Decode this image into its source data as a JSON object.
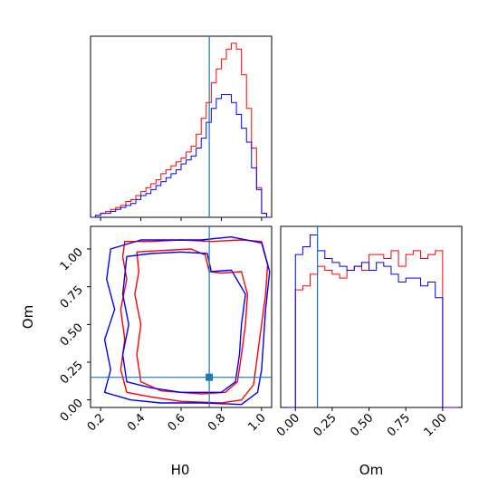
{
  "chart_data": {
    "type": "corner",
    "parameters": [
      "H0",
      "Om"
    ],
    "truth": {
      "H0": 0.74,
      "Om": 0.15
    },
    "colors": {
      "series_a": "#ff0000",
      "series_b": "#0000ff",
      "truth": "#1f77b4"
    },
    "hist_H0": {
      "bins": [
        0.15,
        0.175,
        0.2,
        0.225,
        0.25,
        0.275,
        0.3,
        0.325,
        0.35,
        0.375,
        0.4,
        0.425,
        0.45,
        0.475,
        0.5,
        0.525,
        0.55,
        0.575,
        0.6,
        0.625,
        0.65,
        0.675,
        0.7,
        0.725,
        0.75,
        0.775,
        0.8,
        0.825,
        0.85,
        0.875,
        0.9,
        0.925,
        0.95,
        0.975,
        1.0,
        1.025,
        1.05
      ],
      "series": [
        {
          "color": "red",
          "values": [
            0,
            1,
            2,
            3,
            4,
            5,
            6,
            8,
            9,
            11,
            13,
            15,
            17,
            19,
            22,
            24,
            26,
            28,
            30,
            33,
            36,
            42,
            50,
            58,
            68,
            75,
            80,
            85,
            88,
            85,
            72,
            55,
            35,
            15,
            2,
            0
          ]
        },
        {
          "color": "blue",
          "values": [
            0,
            1,
            2,
            2,
            3,
            4,
            5,
            6,
            7,
            9,
            11,
            12,
            14,
            16,
            18,
            20,
            22,
            24,
            27,
            29,
            31,
            35,
            40,
            48,
            55,
            60,
            62,
            62,
            58,
            52,
            45,
            38,
            25,
            14,
            2,
            0
          ]
        }
      ],
      "xlim": [
        0.15,
        1.05
      ],
      "ticks": [
        "0.2",
        "0.4",
        "0.6",
        "0.8",
        "1.0"
      ]
    },
    "hist_Om": {
      "bins": [
        -0.05,
        0.0,
        0.05,
        0.1,
        0.15,
        0.2,
        0.25,
        0.3,
        0.35,
        0.4,
        0.45,
        0.5,
        0.55,
        0.6,
        0.65,
        0.7,
        0.75,
        0.8,
        0.85,
        0.9,
        0.95,
        1.0,
        1.05,
        1.1
      ],
      "series": [
        {
          "color": "red",
          "values": [
            0,
            60,
            62,
            68,
            72,
            70,
            68,
            66,
            70,
            72,
            70,
            78,
            78,
            76,
            80,
            72,
            78,
            80,
            76,
            78,
            80,
            0,
            0
          ]
        },
        {
          "color": "blue",
          "values": [
            0,
            78,
            82,
            88,
            80,
            76,
            74,
            72,
            70,
            72,
            74,
            70,
            74,
            72,
            68,
            64,
            66,
            66,
            62,
            64,
            56,
            0,
            0
          ]
        }
      ],
      "xlim": [
        -0.1,
        1.13
      ],
      "ticks": [
        "0.00",
        "0.25",
        "0.50",
        "0.75",
        "1.00"
      ]
    },
    "contour": {
      "xlim": [
        0.15,
        1.05
      ],
      "ylim": [
        -0.05,
        1.15
      ],
      "xticks": [
        "0.2",
        "0.4",
        "0.6",
        "0.8",
        "1.0"
      ],
      "yticks": [
        "0.00",
        "0.25",
        "0.50",
        "0.75",
        "1.00"
      ],
      "series": [
        {
          "color": "red",
          "levels": [
            [
              [
                0.32,
                1.05
              ],
              [
                0.45,
                1.05
              ],
              [
                0.6,
                1.06
              ],
              [
                0.75,
                1.05
              ],
              [
                0.9,
                1.06
              ],
              [
                1.0,
                1.05
              ],
              [
                1.03,
                0.9
              ],
              [
                1.02,
                0.7
              ],
              [
                1.0,
                0.5
              ],
              [
                0.98,
                0.3
              ],
              [
                0.96,
                0.1
              ],
              [
                0.9,
                0.0
              ],
              [
                0.8,
                -0.02
              ],
              [
                0.6,
                -0.01
              ],
              [
                0.45,
                0.02
              ],
              [
                0.33,
                0.05
              ],
              [
                0.3,
                0.2
              ],
              [
                0.32,
                0.4
              ],
              [
                0.3,
                0.6
              ],
              [
                0.33,
                0.8
              ],
              [
                0.31,
                0.95
              ],
              [
                0.32,
                1.05
              ]
            ],
            [
              [
                0.38,
                0.98
              ],
              [
                0.5,
                0.99
              ],
              [
                0.65,
                1.0
              ],
              [
                0.72,
                0.96
              ],
              [
                0.74,
                0.85
              ],
              [
                0.8,
                0.84
              ],
              [
                0.9,
                0.85
              ],
              [
                0.93,
                0.7
              ],
              [
                0.92,
                0.5
              ],
              [
                0.9,
                0.3
              ],
              [
                0.88,
                0.12
              ],
              [
                0.82,
                0.05
              ],
              [
                0.7,
                0.04
              ],
              [
                0.5,
                0.06
              ],
              [
                0.4,
                0.12
              ],
              [
                0.38,
                0.3
              ],
              [
                0.4,
                0.5
              ],
              [
                0.37,
                0.7
              ],
              [
                0.39,
                0.85
              ],
              [
                0.38,
                0.98
              ]
            ]
          ]
        },
        {
          "color": "blue",
          "levels": [
            [
              [
                0.25,
                1.0
              ],
              [
                0.4,
                1.06
              ],
              [
                0.55,
                1.06
              ],
              [
                0.7,
                1.06
              ],
              [
                0.85,
                1.08
              ],
              [
                1.0,
                1.04
              ],
              [
                1.04,
                0.85
              ],
              [
                1.02,
                0.6
              ],
              [
                1.01,
                0.4
              ],
              [
                1.0,
                0.2
              ],
              [
                0.98,
                0.05
              ],
              [
                0.9,
                -0.03
              ],
              [
                0.7,
                -0.02
              ],
              [
                0.5,
                -0.02
              ],
              [
                0.35,
                0.0
              ],
              [
                0.22,
                0.05
              ],
              [
                0.25,
                0.2
              ],
              [
                0.22,
                0.4
              ],
              [
                0.27,
                0.6
              ],
              [
                0.23,
                0.8
              ],
              [
                0.25,
                1.0
              ]
            ],
            [
              [
                0.33,
                0.95
              ],
              [
                0.45,
                0.97
              ],
              [
                0.6,
                0.98
              ],
              [
                0.73,
                0.97
              ],
              [
                0.75,
                0.85
              ],
              [
                0.85,
                0.86
              ],
              [
                0.92,
                0.7
              ],
              [
                0.9,
                0.5
              ],
              [
                0.89,
                0.3
              ],
              [
                0.87,
                0.12
              ],
              [
                0.8,
                0.05
              ],
              [
                0.6,
                0.05
              ],
              [
                0.45,
                0.08
              ],
              [
                0.33,
                0.12
              ],
              [
                0.31,
                0.3
              ],
              [
                0.34,
                0.5
              ],
              [
                0.31,
                0.7
              ],
              [
                0.33,
                0.95
              ]
            ]
          ]
        }
      ]
    },
    "xlabels": [
      "H0",
      "Om"
    ],
    "ylabel": "Om"
  }
}
